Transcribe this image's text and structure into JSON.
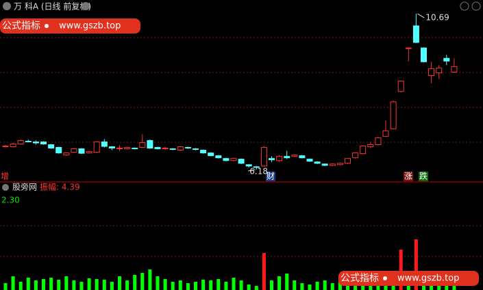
{
  "header": {
    "title": "万 科A (日线 前复权)"
  },
  "watermark": {
    "label": "公式指标",
    "url": "www.gszb.top"
  },
  "markers": {
    "left": "增",
    "finance": "财",
    "rise": "涨",
    "fall": "跌"
  },
  "indicator": {
    "name": "股旁网",
    "label": "振幅: 4.39",
    "strip": "2.30"
  },
  "chart_data": [
    {
      "type": "candlestick",
      "ylim": [
        5.9,
        10.89
      ],
      "grid": true,
      "up_color": "#ff3232",
      "down_color": "#54ffff",
      "open": [
        6.86,
        6.84,
        6.92,
        7.0,
        6.98,
        6.98,
        6.9,
        6.82,
        6.6,
        6.68,
        6.78,
        6.66,
        6.68,
        6.98,
        6.84,
        6.8,
        6.78,
        6.8,
        6.82,
        7.02,
        6.82,
        6.8,
        6.78,
        6.74,
        6.82,
        6.78,
        6.74,
        6.66,
        6.58,
        6.5,
        6.44,
        6.48,
        6.32,
        6.26,
        6.28,
        6.5,
        6.44,
        6.56,
        6.56,
        6.58,
        6.48,
        6.4,
        6.34,
        6.3,
        6.32,
        6.36,
        6.52,
        6.64,
        6.84,
        6.9,
        7.14,
        7.36,
        8.44,
        9.7,
        10.34,
        9.7,
        8.9,
        8.98,
        9.4,
        9.0
      ],
      "high": [
        6.9,
        6.96,
        7.05,
        7.04,
        7.02,
        7.0,
        6.92,
        6.84,
        6.68,
        6.8,
        6.8,
        6.72,
        7.0,
        7.06,
        6.86,
        6.88,
        6.84,
        6.82,
        7.2,
        7.05,
        6.84,
        6.84,
        6.8,
        6.86,
        6.84,
        6.8,
        6.76,
        6.68,
        6.6,
        6.52,
        6.52,
        6.5,
        6.34,
        6.28,
        6.86,
        6.56,
        6.6,
        6.72,
        6.62,
        6.6,
        6.5,
        6.42,
        6.36,
        6.36,
        6.38,
        6.52,
        6.68,
        6.88,
        6.98,
        7.12,
        7.6,
        8.18,
        8.76,
        9.7,
        10.69,
        9.72,
        9.3,
        9.2,
        9.5,
        9.4
      ],
      "low": [
        6.82,
        6.82,
        6.9,
        6.97,
        6.9,
        6.9,
        6.78,
        6.64,
        6.58,
        6.66,
        6.63,
        6.64,
        6.66,
        6.82,
        6.74,
        6.72,
        6.76,
        6.76,
        6.8,
        6.78,
        6.76,
        6.76,
        6.74,
        6.72,
        6.78,
        6.74,
        6.64,
        6.56,
        6.5,
        6.42,
        6.42,
        6.34,
        6.24,
        6.18,
        6.26,
        6.4,
        6.4,
        6.48,
        6.54,
        6.5,
        6.4,
        6.34,
        6.28,
        6.28,
        6.3,
        6.34,
        6.5,
        6.62,
        6.8,
        6.88,
        7.12,
        7.34,
        8.42,
        9.31,
        9.84,
        9.28,
        8.68,
        8.8,
        9.2,
        8.98
      ],
      "close": [
        6.86,
        6.92,
        7.02,
        6.99,
        6.95,
        6.92,
        6.8,
        6.66,
        6.66,
        6.78,
        6.65,
        6.7,
        6.98,
        6.85,
        6.8,
        6.8,
        6.82,
        6.78,
        6.96,
        6.8,
        6.78,
        6.8,
        6.76,
        6.84,
        6.8,
        6.76,
        6.66,
        6.58,
        6.52,
        6.44,
        6.5,
        6.36,
        6.28,
        6.24,
        6.82,
        6.46,
        6.56,
        6.52,
        6.6,
        6.52,
        6.42,
        6.36,
        6.3,
        6.34,
        6.36,
        6.5,
        6.66,
        6.86,
        6.9,
        7.1,
        7.3,
        8.14,
        8.74,
        9.7,
        9.86,
        9.3,
        9.1,
        9.12,
        9.32,
        9.16
      ],
      "max_label": "10.69",
      "min_label": "6.18"
    },
    {
      "type": "bar",
      "ylim": [
        0,
        140
      ],
      "grid": true,
      "values": [
        10,
        20,
        12,
        18,
        14,
        16,
        18,
        15,
        20,
        14,
        12,
        17,
        16,
        15,
        12,
        20,
        14,
        22,
        25,
        30,
        20,
        16,
        12,
        14,
        10,
        12,
        15,
        14,
        16,
        12,
        18,
        14,
        8,
        6,
        54,
        14,
        20,
        24,
        14,
        10,
        8,
        12,
        14,
        10,
        12,
        16,
        14,
        20,
        24,
        12,
        14,
        20,
        59,
        14,
        74,
        18,
        14,
        24,
        20,
        16
      ],
      "color": "#00ff00",
      "highlight_color": "#ff1a1a",
      "highlight": [
        34,
        52,
        54
      ]
    }
  ]
}
